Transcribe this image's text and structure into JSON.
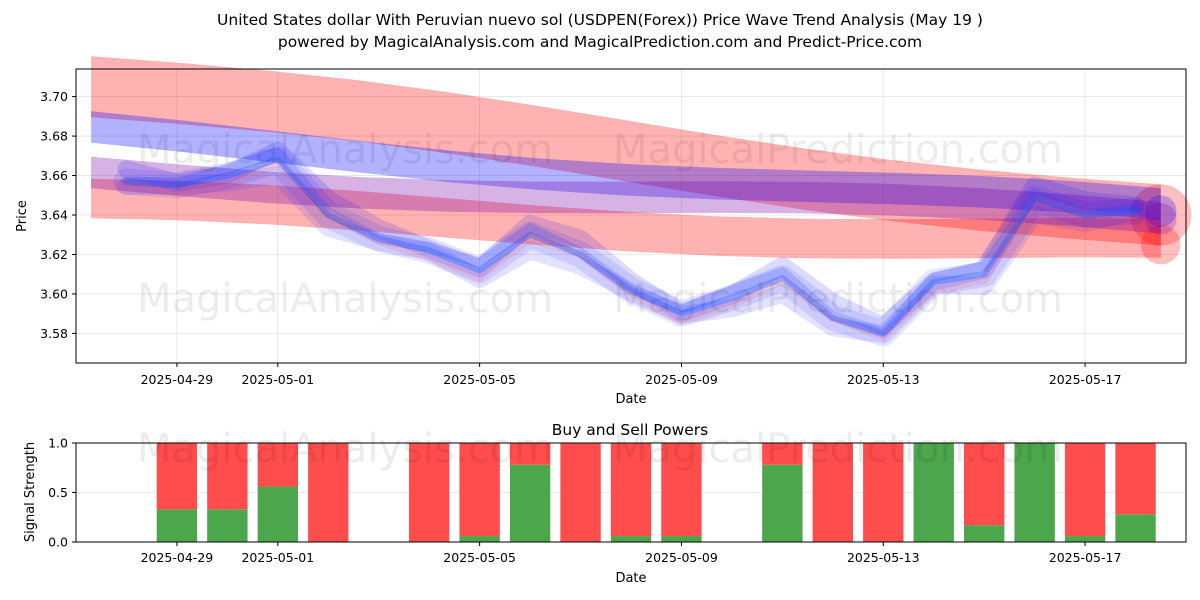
{
  "chart_data": [
    {
      "type": "line",
      "title_line1": "United States dollar With Peruvian nuevo sol (USDPEN(Forex)) Price Wave Trend Analysis (May 19 )",
      "title_line2": "powered by MagicalAnalysis.com and MagicalPrediction.com and Predict-Price.com",
      "xlabel": "Date",
      "ylabel": "Price",
      "ylim": [
        3.565,
        3.714
      ],
      "xlim_days": [
        -2.0,
        20.0
      ],
      "x_ticks": [
        {
          "day": 0,
          "label": "2025-04-29"
        },
        {
          "day": 2,
          "label": "2025-05-01"
        },
        {
          "day": 6,
          "label": "2025-05-05"
        },
        {
          "day": 10,
          "label": "2025-05-09"
        },
        {
          "day": 14,
          "label": "2025-05-13"
        },
        {
          "day": 18,
          "label": "2025-05-17"
        }
      ],
      "y_ticks": [
        3.58,
        3.6,
        3.62,
        3.64,
        3.66,
        3.68,
        3.7
      ],
      "grid": true,
      "price_series": {
        "name": "Price",
        "days": [
          -1,
          0,
          1,
          2,
          3,
          4,
          5,
          6,
          7,
          8,
          9,
          10,
          11,
          12,
          13,
          14,
          15,
          16,
          17,
          18,
          19
        ],
        "values": [
          3.657,
          3.655,
          3.66,
          3.668,
          3.64,
          3.628,
          3.622,
          3.612,
          3.63,
          3.62,
          3.602,
          3.59,
          3.598,
          3.608,
          3.588,
          3.58,
          3.606,
          3.61,
          3.648,
          3.64,
          3.642
        ]
      },
      "trend_bands": [
        {
          "color": "#ff0000",
          "start_day": -1.7,
          "end_day": 19.5,
          "start": 3.705,
          "end": 3.64,
          "width": 0.031
        },
        {
          "color": "#ff0000",
          "start_day": -1.7,
          "end_day": 19.5,
          "start": 3.645,
          "end": 3.625,
          "width": 0.02
        },
        {
          "color": "#0000ff",
          "start_day": -1.7,
          "end_day": 19.5,
          "start": 3.681,
          "end": 3.642,
          "width": 0.016
        },
        {
          "color": "#7700aa",
          "start_day": -1.7,
          "end_day": 19.5,
          "start": 3.661,
          "end": 3.638,
          "width": 0.016
        }
      ]
    },
    {
      "type": "bar",
      "title": "Buy and Sell Powers",
      "xlabel": "Date",
      "ylabel": "Signal Strength",
      "ylim": [
        0,
        1.0
      ],
      "y_ticks": [
        {
          "value": 0.0,
          "label": "0.0"
        },
        {
          "value": 0.5,
          "label": "0.5"
        },
        {
          "value": 1.0,
          "label": "1.0"
        }
      ],
      "xlim_days": [
        -2.0,
        20.0
      ],
      "x_ticks": [
        {
          "day": 0,
          "label": "2025-04-29"
        },
        {
          "day": 2,
          "label": "2025-05-01"
        },
        {
          "day": 6,
          "label": "2025-05-05"
        },
        {
          "day": 10,
          "label": "2025-05-09"
        },
        {
          "day": 14,
          "label": "2025-05-13"
        },
        {
          "day": 18,
          "label": "2025-05-17"
        }
      ],
      "buy_color": "#4ca64c",
      "sell_color": "#ff4c4c",
      "days": [
        0,
        1,
        2,
        3,
        5,
        6,
        7,
        8,
        9,
        10,
        12,
        13,
        14,
        15,
        16,
        17,
        18,
        19
      ],
      "buy": [
        0.33,
        0.33,
        0.56,
        0.0,
        0.0,
        0.06,
        0.78,
        0.0,
        0.06,
        0.06,
        0.78,
        0.0,
        0.0,
        1.0,
        0.17,
        1.0,
        0.06,
        0.28
      ],
      "sell": [
        0.67,
        0.67,
        0.44,
        1.0,
        1.0,
        0.94,
        0.22,
        1.0,
        0.94,
        0.94,
        0.22,
        1.0,
        1.0,
        0.0,
        0.83,
        0.0,
        0.94,
        0.72
      ]
    }
  ],
  "watermarks": [
    "MagicalAnalysis.com",
    "MagicalPrediction.com"
  ]
}
